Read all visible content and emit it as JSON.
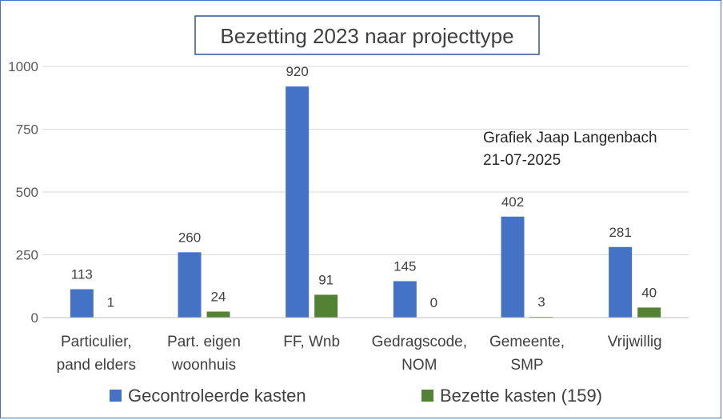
{
  "chart_data": {
    "type": "bar",
    "title": "Bezetting 2023 naar projecttype",
    "annotation": [
      "Grafiek Jaap Langenbach",
      "21-07-2025"
    ],
    "categories": [
      [
        "Particulier,",
        "pand elders"
      ],
      [
        "Part. eigen",
        "woonhuis"
      ],
      [
        "FF, Wnb"
      ],
      [
        "Gedragscode,",
        "NOM"
      ],
      [
        "Gemeente,",
        "SMP"
      ],
      [
        "Vrijwillig"
      ]
    ],
    "series": [
      {
        "name": "Gecontroleerde kasten",
        "color": "#4472c4",
        "values": [
          113,
          260,
          920,
          145,
          402,
          281
        ]
      },
      {
        "name": "Bezette kasten (159)",
        "color": "#548235",
        "values": [
          1,
          24,
          91,
          0,
          3,
          40
        ]
      }
    ],
    "ylim": [
      0,
      1000
    ],
    "yticks": [
      0,
      250,
      500,
      750,
      1000
    ],
    "grid": true,
    "legend": "bottom"
  }
}
